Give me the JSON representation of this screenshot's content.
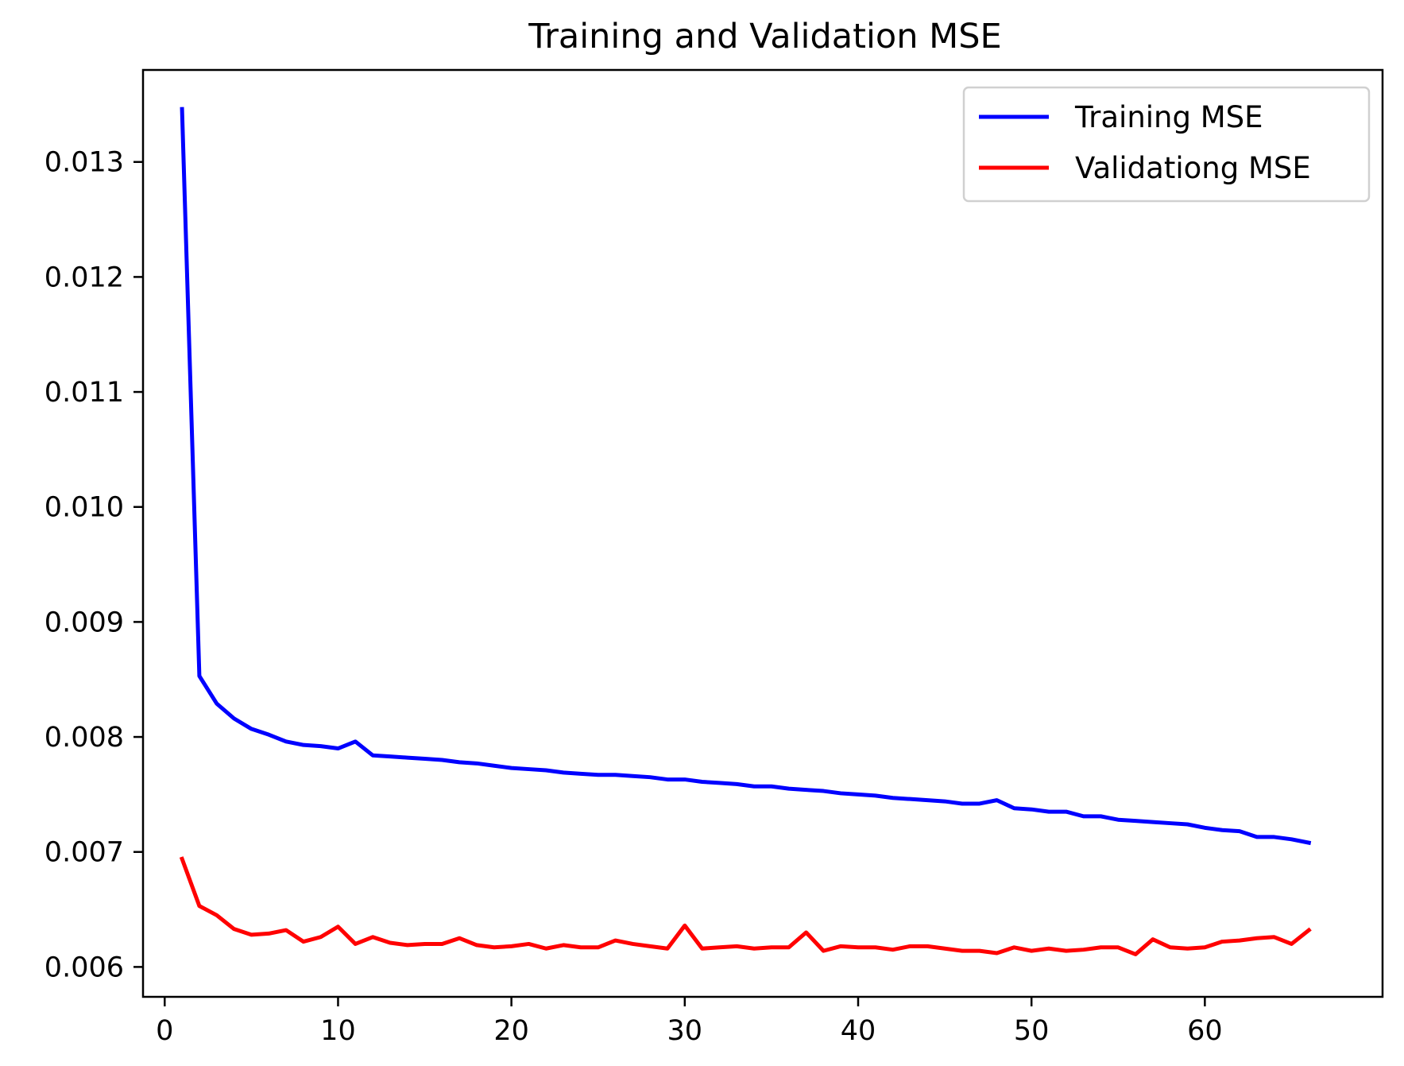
{
  "chart_data": {
    "type": "line",
    "title": "Training and Validation MSE",
    "xlabel": "",
    "ylabel": "",
    "xlim": [
      -1.25,
      70.25
    ],
    "ylim": [
      0.00574,
      0.0138
    ],
    "xticks": [
      0,
      10,
      20,
      30,
      40,
      50,
      60
    ],
    "xtick_labels": [
      "0",
      "10",
      "20",
      "30",
      "40",
      "50",
      "60"
    ],
    "yticks": [
      0.006,
      0.007,
      0.008,
      0.009,
      0.01,
      0.011,
      0.012,
      0.013
    ],
    "ytick_labels": [
      "0.006",
      "0.007",
      "0.008",
      "0.009",
      "0.010",
      "0.011",
      "0.012",
      "0.013"
    ],
    "grid": false,
    "legend_position": "top-right",
    "x": [
      1,
      2,
      3,
      4,
      5,
      6,
      7,
      8,
      9,
      10,
      11,
      12,
      13,
      14,
      15,
      16,
      17,
      18,
      19,
      20,
      21,
      22,
      23,
      24,
      25,
      26,
      27,
      28,
      29,
      30,
      31,
      32,
      33,
      34,
      35,
      36,
      37,
      38,
      39,
      40,
      41,
      42,
      43,
      44,
      45,
      46,
      47,
      48,
      49,
      50,
      51,
      52,
      53,
      54,
      55,
      56,
      57,
      58,
      59,
      60,
      61,
      62,
      63,
      64,
      65,
      66
    ],
    "series": [
      {
        "name": "Training MSE",
        "color": "#0000ff",
        "values": [
          0.01346,
          0.00853,
          0.00829,
          0.00816,
          0.00807,
          0.00802,
          0.00796,
          0.00793,
          0.00792,
          0.0079,
          0.00796,
          0.00784,
          0.00783,
          0.00782,
          0.00781,
          0.0078,
          0.00778,
          0.00777,
          0.00775,
          0.00773,
          0.00772,
          0.00771,
          0.00769,
          0.00768,
          0.00767,
          0.00767,
          0.00766,
          0.00765,
          0.00763,
          0.00763,
          0.00761,
          0.0076,
          0.00759,
          0.00757,
          0.00757,
          0.00755,
          0.00754,
          0.00753,
          0.00751,
          0.0075,
          0.00749,
          0.00747,
          0.00746,
          0.00745,
          0.00744,
          0.00742,
          0.00742,
          0.00745,
          0.00738,
          0.00737,
          0.00735,
          0.00735,
          0.00731,
          0.00731,
          0.00728,
          0.00727,
          0.00726,
          0.00725,
          0.00724,
          0.00721,
          0.00719,
          0.00718,
          0.00713,
          0.00713,
          0.00711,
          0.00708
        ]
      },
      {
        "name": "Validationg MSE",
        "color": "#ff0000",
        "values": [
          0.00694,
          0.00653,
          0.00645,
          0.00633,
          0.00628,
          0.00629,
          0.00632,
          0.00622,
          0.00626,
          0.00635,
          0.0062,
          0.00626,
          0.00621,
          0.00619,
          0.0062,
          0.0062,
          0.00625,
          0.00619,
          0.00617,
          0.00618,
          0.0062,
          0.00616,
          0.00619,
          0.00617,
          0.00617,
          0.00623,
          0.0062,
          0.00618,
          0.00616,
          0.00636,
          0.00616,
          0.00617,
          0.00618,
          0.00616,
          0.00617,
          0.00617,
          0.0063,
          0.00614,
          0.00618,
          0.00617,
          0.00617,
          0.00615,
          0.00618,
          0.00618,
          0.00616,
          0.00614,
          0.00614,
          0.00612,
          0.00617,
          0.00614,
          0.00616,
          0.00614,
          0.00615,
          0.00617,
          0.00617,
          0.00611,
          0.00624,
          0.00617,
          0.00616,
          0.00617,
          0.00622,
          0.00623,
          0.00625,
          0.00626,
          0.0062,
          0.00632
        ]
      }
    ]
  }
}
